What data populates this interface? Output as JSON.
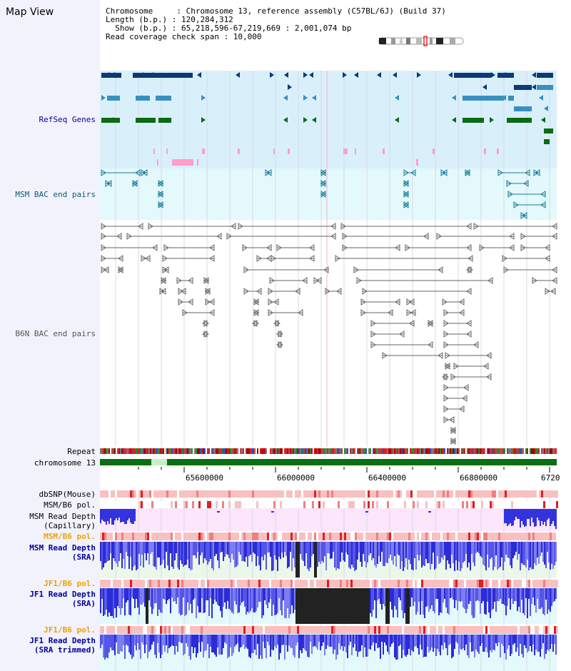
{
  "header": {
    "title": "Map View",
    "info_lines": [
      "Chromosome     : Chromosome 13, reference assembly (C57BL/6J) (Build 37)",
      "Length (b.p.) : 120,284,312",
      "  Show (b.p.) : 65,218,596-67,219,669 : 2,001,074 bp",
      "Read coverage check span : 10,000"
    ]
  },
  "tracks": {
    "refseq": "RefSeq Genes",
    "msm_bac": "MSM BAC end pairs",
    "b6n_bac": "B6N BAC end pairs",
    "repeat": "Repeat",
    "chromosome": "chromosome 13",
    "dbsnp": "dbSNP(Mouse)",
    "msm_b6_pol_1": "MSM/B6 pol.",
    "msm_read_depth_cap_1": "MSM Read Depth",
    "msm_read_depth_cap_2": "(Capillary)",
    "msm_b6_pol_2": "MSM/B6 pol.",
    "msm_read_depth_sra_1": "MSM Read Depth",
    "msm_read_depth_sra_2": "(SRA)",
    "jf1_b6_pol_1": "JF1/B6 pol.",
    "jf1_read_depth_sra_1": "JF1 Read Depth",
    "jf1_read_depth_sra_2": "(SRA)",
    "jf1_b6_pol_2": "JF1/B6 pol.",
    "jf1_read_depth_trim_1": "JF1 Read Depth",
    "jf1_read_depth_trim_2": "(SRA trimmed)"
  },
  "scale": {
    "ticks": [
      "65600000",
      "66000000",
      "66400000",
      "66800000",
      "6720"
    ]
  },
  "colors": {
    "refseq_bg": "#d9f0fb",
    "msm_bg": "#e3f9fb",
    "gene_dark": "#0d3a73",
    "gene_mid": "#3a8fbf",
    "gene_green": "#0b6b14",
    "pink": "#ff9ec8",
    "chromosome": "#0a6e12",
    "label_blue": "#00009c",
    "label_teal": "#0d5a7a",
    "label_orange": "#f0a000"
  }
}
